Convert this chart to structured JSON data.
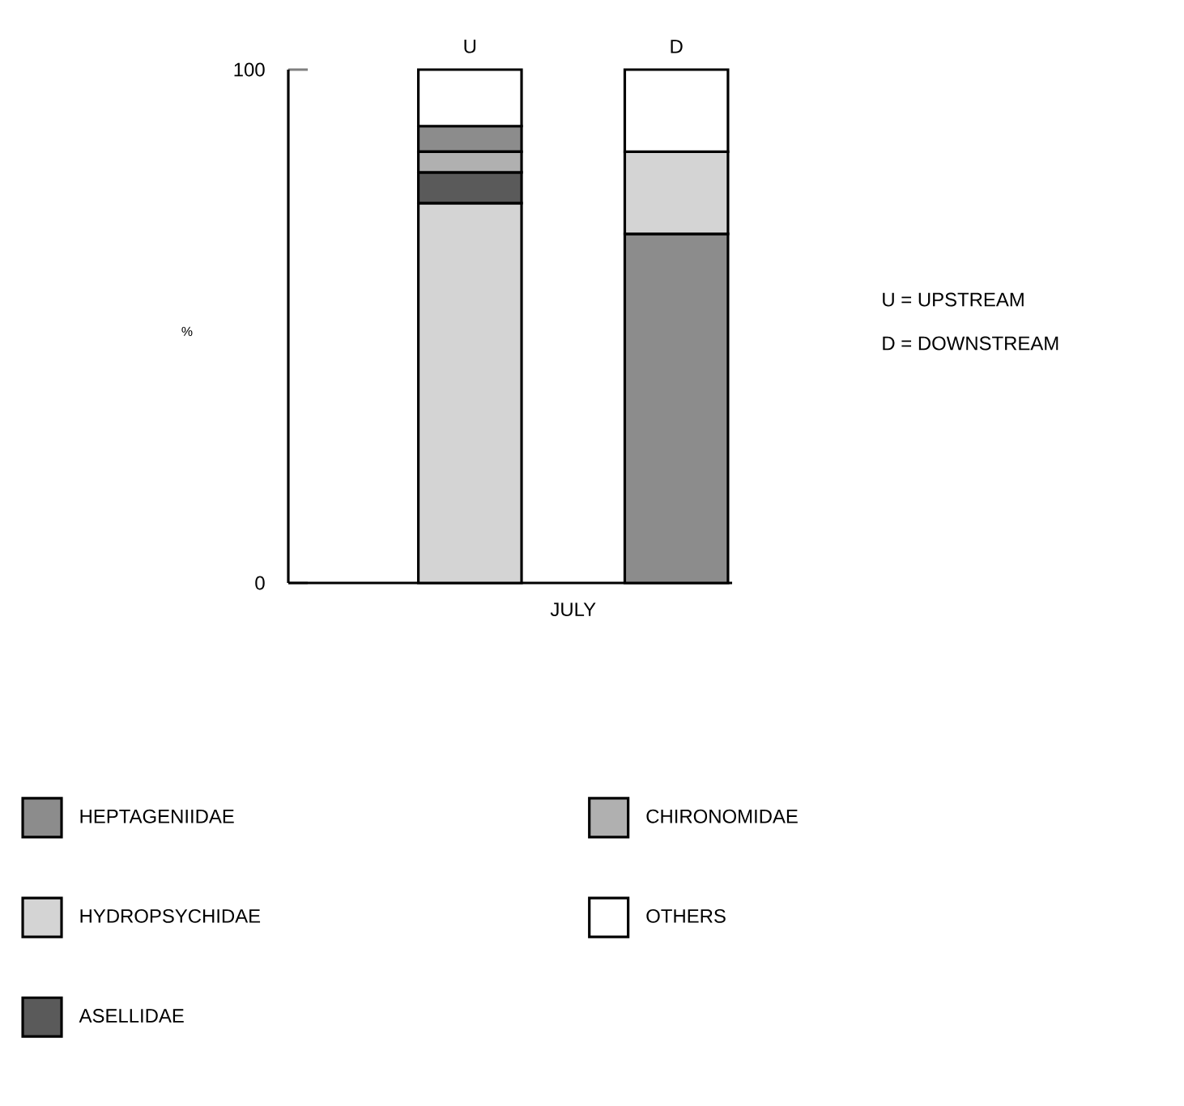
{
  "chart_data": {
    "type": "bar",
    "xlabel": "JULY",
    "ylabel": "%",
    "categories": [
      "U",
      "D"
    ],
    "ylim": [
      0,
      100
    ],
    "yticks": [
      0,
      100
    ],
    "legend": "bottom",
    "annotations": [
      "U = UPSTREAM",
      "D = DOWNSTREAM"
    ],
    "series": [
      {
        "name": "HEPTAGENIIDAE",
        "color": "#8c8c8c",
        "values": [
          5,
          68
        ],
        "base": [
          84,
          0
        ]
      },
      {
        "name": "HYDROPSYCHIDAE",
        "color": "#d4d4d4",
        "values": [
          74,
          16
        ],
        "base": [
          0,
          68
        ]
      },
      {
        "name": "ASELLIDAE",
        "color": "#5a5a5a",
        "values": [
          6,
          null
        ],
        "base": [
          74,
          null
        ]
      },
      {
        "name": "CHIRONOMIDAE",
        "color": "#b0b0b0",
        "values": [
          4,
          null
        ],
        "base": [
          80,
          null
        ]
      },
      {
        "name": "OTHERS",
        "color": "#ffffff",
        "values": [
          11,
          16
        ],
        "base": [
          89,
          84
        ]
      }
    ]
  }
}
